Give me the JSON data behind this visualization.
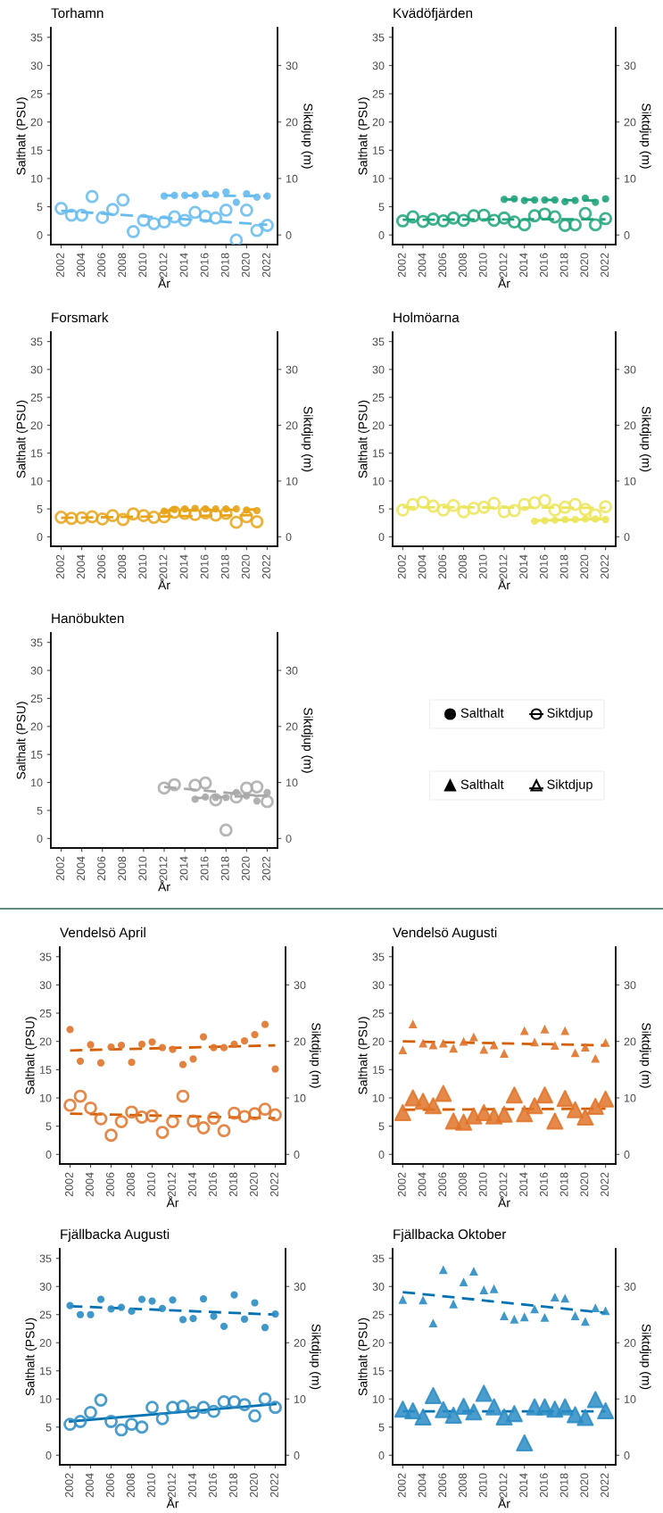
{
  "chart_data": [
    {
      "type": "scatter",
      "title": "Torhamn",
      "xlabel": "År",
      "ylabel": "Salthalt (PSU)",
      "y2label": "Siktdjup (m)",
      "xlim": [
        2001,
        2023
      ],
      "xticks": [
        2002,
        2004,
        2006,
        2008,
        2010,
        2012,
        2014,
        2016,
        2018,
        2020,
        2022
      ],
      "ylim": [
        -1.7,
        36.7
      ],
      "yticks": [
        0,
        5,
        10,
        15,
        20,
        25,
        30,
        35
      ],
      "y2lim": [
        -1.7,
        36.7
      ],
      "y2ticks": [
        0,
        10,
        20,
        30
      ],
      "x": [
        2002,
        2003,
        2004,
        2005,
        2006,
        2007,
        2008,
        2009,
        2010,
        2011,
        2012,
        2013,
        2014,
        2015,
        2016,
        2017,
        2018,
        2019,
        2020,
        2021,
        2022
      ],
      "series": [
        {
          "type": "scatter",
          "marker": "circle",
          "color": "#66bbee",
          "values": [
            null,
            null,
            null,
            null,
            null,
            null,
            null,
            null,
            null,
            null,
            6.9,
            7.0,
            7.0,
            7.0,
            7.3,
            7.1,
            7.6,
            5.8,
            7.3,
            6.7,
            6.9
          ]
        },
        {
          "type": "scatter",
          "marker": "circle",
          "axis": "y2",
          "color": "#66bbee",
          "values": [
            4.7,
            3.5,
            3.5,
            6.8,
            3.1,
            4.5,
            6.2,
            0.6,
            2.6,
            2.0,
            2.3,
            3.2,
            2.6,
            4.0,
            3.3,
            3.0,
            4.4,
            -0.9,
            4.4,
            0.8,
            1.7
          ]
        },
        {
          "type": "line",
          "line_style": "dashed",
          "color": "#66bbee",
          "x": [
            2012,
            2022
          ],
          "values": [
            7.0,
            6.9
          ]
        },
        {
          "type": "line",
          "line_style": "dashed",
          "axis": "y2",
          "color": "#66bbee",
          "x": [
            2002,
            2022
          ],
          "values": [
            4.3,
            1.8
          ]
        }
      ]
    },
    {
      "type": "scatter",
      "title": "Kvädöfjärden",
      "xlabel": "År",
      "ylabel": "Salthalt (PSU)",
      "y2label": "Siktdjup (m)",
      "xlim": [
        2001,
        2023
      ],
      "xticks": [
        2002,
        2004,
        2006,
        2008,
        2010,
        2012,
        2014,
        2016,
        2018,
        2020,
        2022
      ],
      "ylim": [
        -1.7,
        36.7
      ],
      "yticks": [
        0,
        5,
        10,
        15,
        20,
        25,
        30,
        35
      ],
      "y2lim": [
        -1.7,
        36.7
      ],
      "y2ticks": [
        0,
        10,
        20,
        30
      ],
      "x": [
        2002,
        2003,
        2004,
        2005,
        2006,
        2007,
        2008,
        2009,
        2010,
        2011,
        2012,
        2013,
        2014,
        2015,
        2016,
        2017,
        2018,
        2019,
        2020,
        2021,
        2022
      ],
      "series": [
        {
          "type": "scatter",
          "marker": "circle",
          "color": "#20a47b",
          "values": [
            null,
            null,
            null,
            null,
            null,
            null,
            null,
            null,
            null,
            null,
            6.3,
            6.4,
            6.1,
            6.2,
            6.2,
            6.2,
            5.9,
            6.1,
            6.5,
            5.8,
            6.4
          ]
        },
        {
          "type": "scatter",
          "marker": "circle",
          "axis": "y2",
          "color": "#20a47b",
          "values": [
            2.5,
            3.2,
            2.4,
            2.8,
            2.5,
            3.0,
            2.6,
            3.4,
            3.5,
            2.6,
            3.0,
            2.3,
            1.8,
            3.4,
            3.7,
            3.2,
            1.7,
            1.8,
            3.8,
            1.8,
            2.9
          ]
        },
        {
          "type": "line",
          "line_style": "dashed",
          "color": "#20a47b",
          "x": [
            2012,
            2022
          ],
          "values": [
            6.3,
            6.1
          ]
        },
        {
          "type": "line",
          "line_style": "dashed",
          "axis": "y2",
          "color": "#20a47b",
          "x": [
            2002,
            2022
          ],
          "values": [
            2.7,
            2.8
          ]
        }
      ]
    },
    {
      "type": "scatter",
      "title": "Forsmark",
      "xlabel": "År",
      "ylabel": "Salthalt (PSU)",
      "y2label": "Siktdjup (m)",
      "xlim": [
        2001,
        2023
      ],
      "xticks": [
        2002,
        2004,
        2006,
        2008,
        2010,
        2012,
        2014,
        2016,
        2018,
        2020,
        2022
      ],
      "ylim": [
        -1.7,
        36.7
      ],
      "yticks": [
        0,
        5,
        10,
        15,
        20,
        25,
        30,
        35
      ],
      "y2lim": [
        -1.7,
        36.7
      ],
      "y2ticks": [
        0,
        10,
        20,
        30
      ],
      "x": [
        2002,
        2003,
        2004,
        2005,
        2006,
        2007,
        2008,
        2009,
        2010,
        2011,
        2012,
        2013,
        2014,
        2015,
        2016,
        2017,
        2018,
        2019,
        2020,
        2021
      ],
      "series": [
        {
          "type": "scatter",
          "marker": "circle",
          "color": "#e8a317",
          "values": [
            null,
            null,
            null,
            null,
            null,
            null,
            null,
            null,
            null,
            null,
            4.6,
            4.9,
            5.0,
            5.1,
            5.0,
            5.0,
            5.0,
            5.0,
            4.8,
            4.7
          ]
        },
        {
          "type": "scatter",
          "marker": "circle",
          "axis": "y2",
          "color": "#e8a317",
          "values": [
            3.5,
            3.3,
            3.4,
            3.6,
            3.2,
            3.8,
            3.1,
            4.1,
            3.8,
            3.5,
            3.6,
            4.4,
            4.2,
            4.0,
            4.3,
            3.9,
            4.2,
            2.6,
            3.6,
            2.7
          ]
        },
        {
          "type": "line",
          "line_style": "dashed",
          "color": "#e8a317",
          "x": [
            2012,
            2021
          ],
          "values": [
            4.7,
            4.9
          ]
        },
        {
          "type": "line",
          "line_style": "dashed",
          "axis": "y2",
          "color": "#e8a317",
          "x": [
            2002,
            2021
          ],
          "values": [
            3.4,
            3.9
          ]
        }
      ]
    },
    {
      "type": "scatter",
      "title": "Holmöarna",
      "xlabel": "År",
      "ylabel": "Salthalt (PSU)",
      "y2label": "Siktdjup (m)",
      "xlim": [
        2001,
        2023
      ],
      "xticks": [
        2002,
        2004,
        2006,
        2008,
        2010,
        2012,
        2014,
        2016,
        2018,
        2020,
        2022
      ],
      "ylim": [
        -1.7,
        36.7
      ],
      "yticks": [
        0,
        5,
        10,
        15,
        20,
        25,
        30,
        35
      ],
      "y2lim": [
        -1.7,
        36.7
      ],
      "y2ticks": [
        0,
        10,
        20,
        30
      ],
      "x": [
        2002,
        2003,
        2004,
        2005,
        2006,
        2007,
        2008,
        2009,
        2010,
        2011,
        2012,
        2013,
        2014,
        2015,
        2016,
        2017,
        2018,
        2019,
        2020,
        2021,
        2022
      ],
      "series": [
        {
          "type": "scatter",
          "marker": "circle",
          "color": "#ece55a",
          "values": [
            null,
            null,
            null,
            null,
            null,
            null,
            null,
            null,
            null,
            null,
            null,
            null,
            null,
            2.8,
            2.9,
            3.0,
            3.1,
            3.1,
            3.2,
            3.2,
            3.1
          ]
        },
        {
          "type": "scatter",
          "marker": "circle",
          "axis": "y2",
          "color": "#ece55a",
          "values": [
            4.8,
            5.8,
            6.2,
            5.5,
            4.8,
            5.6,
            4.5,
            5.1,
            5.3,
            6.0,
            4.5,
            4.7,
            5.8,
            6.1,
            6.5,
            4.8,
            5.3,
            5.8,
            4.9,
            3.9,
            5.4
          ]
        },
        {
          "type": "line",
          "line_style": "solid",
          "color": "#ece55a",
          "x": [
            2015,
            2022
          ],
          "values": [
            2.9,
            3.2
          ]
        },
        {
          "type": "line",
          "line_style": "dashed",
          "axis": "y2",
          "color": "#ece55a",
          "x": [
            2002,
            2022
          ],
          "values": [
            5.3,
            5.2
          ]
        }
      ]
    },
    {
      "type": "scatter",
      "title": "Hanöbukten",
      "xlabel": "År",
      "ylabel": "Salthalt (PSU)",
      "y2label": "Siktdjup (m)",
      "xlim": [
        2001,
        2023
      ],
      "xticks": [
        2002,
        2004,
        2006,
        2008,
        2010,
        2012,
        2014,
        2016,
        2018,
        2020,
        2022
      ],
      "ylim": [
        -1.7,
        36.7
      ],
      "yticks": [
        0,
        5,
        10,
        15,
        20,
        25,
        30,
        35
      ],
      "y2lim": [
        -1.7,
        36.7
      ],
      "y2ticks": [
        0,
        10,
        20,
        30
      ],
      "x": [
        2012,
        2013,
        2014,
        2015,
        2016,
        2017,
        2018,
        2019,
        2020,
        2021,
        2022
      ],
      "series": [
        {
          "type": "scatter",
          "marker": "circle",
          "color": "#a9a9a9",
          "values": [
            null,
            null,
            null,
            7.0,
            7.4,
            7.3,
            7.3,
            8.2,
            7.6,
            6.7,
            8.2
          ]
        },
        {
          "type": "scatter",
          "marker": "circle",
          "axis": "y2",
          "color": "#a9a9a9",
          "values": [
            9.0,
            9.6,
            null,
            9.5,
            9.9,
            6.9,
            1.5,
            7.4,
            9.0,
            9.2,
            6.6
          ]
        },
        {
          "type": "line",
          "line_style": "dashed",
          "color": "#a9a9a9",
          "x": [
            2015,
            2022
          ],
          "values": [
            7.2,
            7.7
          ]
        },
        {
          "type": "line",
          "line_style": "dashed",
          "axis": "y2",
          "color": "#a9a9a9",
          "x": [
            2012,
            2022
          ],
          "values": [
            9.2,
            7.5
          ]
        }
      ]
    },
    {
      "type": "other",
      "annotations": [
        "Salthalt",
        "Siktdjup",
        "Salthalt",
        "Siktdjup"
      ]
    },
    {
      "type": "scatter",
      "title": "Vendelsö April",
      "xlabel": "År",
      "ylabel": "Salthalt (PSU)",
      "y2label": "Siktdjup (m)",
      "xlim": [
        2001,
        2023
      ],
      "xticks": [
        2002,
        2004,
        2006,
        2008,
        2010,
        2012,
        2014,
        2016,
        2018,
        2020,
        2022
      ],
      "ylim": [
        -1.7,
        36.7
      ],
      "yticks": [
        0,
        5,
        10,
        15,
        20,
        25,
        30,
        35
      ],
      "y2lim": [
        -1.7,
        36.7
      ],
      "y2ticks": [
        0,
        10,
        20,
        30
      ],
      "x": [
        2002,
        2003,
        2004,
        2005,
        2006,
        2007,
        2008,
        2009,
        2010,
        2011,
        2012,
        2013,
        2014,
        2015,
        2016,
        2017,
        2018,
        2019,
        2020,
        2021,
        2022
      ],
      "series": [
        {
          "type": "scatter",
          "marker": "circle",
          "color": "#e0742a",
          "values": [
            22.1,
            16.5,
            19.4,
            16.2,
            19.0,
            19.3,
            16.3,
            19.5,
            19.9,
            18.9,
            18.6,
            15.9,
            16.9,
            20.8,
            18.9,
            18.9,
            19.5,
            20.1,
            21.2,
            23.0,
            15.1
          ]
        },
        {
          "type": "scatter",
          "marker": "circle",
          "axis": "y2",
          "color": "#e0742a",
          "values": [
            8.7,
            10.3,
            8.2,
            6.3,
            3.4,
            5.8,
            7.5,
            6.6,
            6.8,
            3.9,
            5.8,
            10.3,
            5.9,
            4.7,
            6.4,
            4.2,
            7.3,
            6.7,
            7.2,
            8.0,
            7.0
          ]
        },
        {
          "type": "line",
          "line_style": "dashed",
          "color": "#d55e00",
          "x": [
            2002,
            2022
          ],
          "values": [
            18.4,
            19.3
          ]
        },
        {
          "type": "line",
          "line_style": "dashed",
          "axis": "y2",
          "color": "#d55e00",
          "x": [
            2002,
            2022
          ],
          "values": [
            7.2,
            6.4
          ]
        }
      ]
    },
    {
      "type": "scatter",
      "title": "Vendelsö Augusti",
      "xlabel": "År",
      "ylabel": "Salthalt (PSU)",
      "y2label": "Siktdjup (m)",
      "xlim": [
        2001,
        2023
      ],
      "xticks": [
        2002,
        2004,
        2006,
        2008,
        2010,
        2012,
        2014,
        2016,
        2018,
        2020,
        2022
      ],
      "ylim": [
        -1.7,
        36.7
      ],
      "yticks": [
        0,
        5,
        10,
        15,
        20,
        25,
        30,
        35
      ],
      "y2lim": [
        -1.7,
        36.7
      ],
      "y2ticks": [
        0,
        10,
        20,
        30
      ],
      "x": [
        2002,
        2003,
        2004,
        2005,
        2006,
        2007,
        2008,
        2009,
        2010,
        2011,
        2012,
        2013,
        2014,
        2015,
        2016,
        2017,
        2018,
        2019,
        2020,
        2021,
        2022
      ],
      "series": [
        {
          "type": "scatter",
          "marker": "triangle",
          "color": "#e0742a",
          "values": [
            18.5,
            23.1,
            19.7,
            19.4,
            19.7,
            18.8,
            20.0,
            20.8,
            18.6,
            19.4,
            17.9,
            null,
            21.9,
            19.9,
            22.2,
            19.3,
            21.9,
            18.0,
            19.0,
            17.0,
            19.8
          ]
        },
        {
          "type": "scatter",
          "marker": "triangle",
          "axis": "y2",
          "color": "#e0742a",
          "values": [
            7.4,
            10.0,
            9.4,
            8.6,
            10.8,
            5.9,
            5.7,
            6.8,
            7.4,
            6.8,
            7.1,
            10.5,
            7.2,
            8.6,
            10.5,
            5.9,
            9.9,
            7.9,
            6.6,
            8.5,
            9.8
          ]
        },
        {
          "type": "line",
          "line_style": "dashed",
          "color": "#d55e00",
          "x": [
            2002,
            2022
          ],
          "values": [
            20.0,
            19.3
          ]
        },
        {
          "type": "line",
          "line_style": "dashed",
          "axis": "y2",
          "color": "#d55e00",
          "x": [
            2002,
            2022
          ],
          "values": [
            7.9,
            8.1
          ]
        }
      ]
    },
    {
      "type": "scatter",
      "title": "Fjällbacka Augusti",
      "xlabel": "År",
      "ylabel": "Salthalt (PSU)",
      "y2label": "Siktdjup (m)",
      "xlim": [
        2001,
        2023
      ],
      "xticks": [
        2002,
        2004,
        2006,
        2008,
        2010,
        2012,
        2014,
        2016,
        2018,
        2020,
        2022
      ],
      "ylim": [
        -1.7,
        36.7
      ],
      "yticks": [
        0,
        5,
        10,
        15,
        20,
        25,
        30,
        35
      ],
      "y2lim": [
        -1.7,
        36.7
      ],
      "y2ticks": [
        0,
        10,
        20,
        30
      ],
      "x": [
        2002,
        2003,
        2004,
        2005,
        2006,
        2007,
        2008,
        2009,
        2010,
        2011,
        2012,
        2013,
        2014,
        2015,
        2016,
        2017,
        2018,
        2019,
        2020,
        2021,
        2022
      ],
      "series": [
        {
          "type": "scatter",
          "marker": "circle",
          "color": "#2b8cc4",
          "values": [
            26.6,
            25.0,
            25.0,
            27.7,
            26.0,
            26.3,
            25.6,
            27.7,
            27.4,
            26.1,
            27.6,
            24.1,
            24.3,
            27.8,
            24.7,
            22.9,
            28.5,
            24.2,
            27.1,
            22.7,
            25.1
          ]
        },
        {
          "type": "scatter",
          "marker": "circle",
          "axis": "y2",
          "color": "#2b8cc4",
          "values": [
            5.5,
            6.0,
            7.6,
            9.8,
            6.0,
            4.5,
            5.5,
            5.0,
            8.5,
            6.5,
            8.5,
            8.7,
            7.6,
            8.5,
            7.8,
            9.5,
            9.5,
            9.0,
            7.0,
            10.0,
            8.5
          ]
        },
        {
          "type": "line",
          "line_style": "dashed",
          "color": "#0072b2",
          "x": [
            2002,
            2022
          ],
          "values": [
            26.5,
            25.0
          ]
        },
        {
          "type": "line",
          "line_style": "solid",
          "axis": "y2",
          "color": "#0072b2",
          "x": [
            2002,
            2022
          ],
          "values": [
            6.0,
            9.1
          ]
        }
      ]
    },
    {
      "type": "scatter",
      "title": "Fjällbacka Oktober",
      "xlabel": "År",
      "ylabel": "Salthalt (PSU)",
      "y2label": "Siktdjup (m)",
      "xlim": [
        2001,
        2023
      ],
      "xticks": [
        2002,
        2004,
        2006,
        2008,
        2010,
        2012,
        2014,
        2016,
        2018,
        2020,
        2022
      ],
      "ylim": [
        -1.7,
        36.7
      ],
      "yticks": [
        0,
        5,
        10,
        15,
        20,
        25,
        30,
        35
      ],
      "y2lim": [
        -1.7,
        36.7
      ],
      "y2ticks": [
        0,
        10,
        20,
        30
      ],
      "x": [
        2002,
        2003,
        2004,
        2005,
        2006,
        2007,
        2008,
        2009,
        2010,
        2011,
        2012,
        2013,
        2014,
        2015,
        2016,
        2017,
        2018,
        2019,
        2020,
        2021,
        2022
      ],
      "series": [
        {
          "type": "scatter",
          "marker": "triangle",
          "color": "#2b8cc4",
          "values": [
            27.7,
            null,
            27.6,
            23.5,
            33.0,
            26.9,
            30.8,
            32.7,
            29.4,
            29.6,
            24.8,
            24.2,
            24.6,
            26.0,
            24.5,
            28.1,
            27.9,
            24.8,
            23.8,
            26.2,
            25.7
          ]
        },
        {
          "type": "scatter",
          "marker": "triangle",
          "axis": "y2",
          "color": "#2b8cc4",
          "values": [
            8.2,
            7.9,
            6.8,
            10.6,
            8.1,
            7.1,
            8.7,
            7.7,
            11.0,
            8.6,
            6.8,
            7.4,
            2.2,
            8.6,
            8.6,
            8.2,
            8.6,
            7.2,
            6.7,
            9.9,
            7.9
          ]
        },
        {
          "type": "line",
          "line_style": "dashed",
          "color": "#0072b2",
          "x": [
            2002,
            2022
          ],
          "values": [
            29.0,
            25.3
          ]
        },
        {
          "type": "line",
          "line_style": "dashed",
          "axis": "y2",
          "color": "#0072b2",
          "x": [
            2002,
            2022
          ],
          "values": [
            7.8,
            7.8
          ]
        }
      ]
    }
  ]
}
